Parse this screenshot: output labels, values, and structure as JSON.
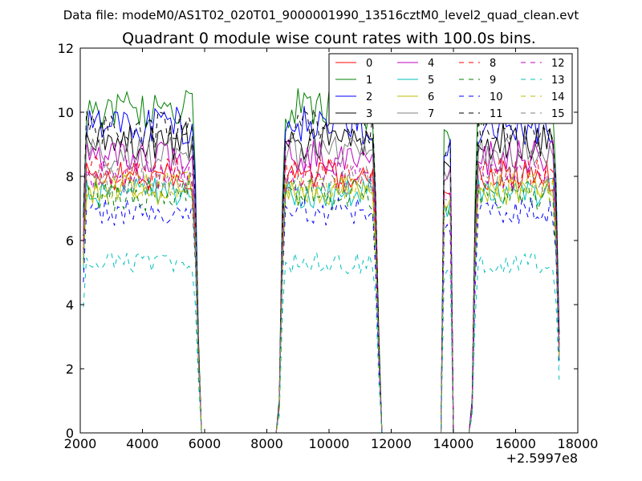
{
  "suptitle": "Data file: modeM0/AS1T02_020T01_9000001990_13516cztM0_level2_quad_clean.evt",
  "chart_data": {
    "type": "line",
    "title": "Quadrant 0 module wise count rates with 100.0s bins.",
    "xlabel": "",
    "ylabel": "",
    "x_offset_label": "+2.5997e8",
    "xlim": [
      2000,
      18000
    ],
    "ylim": [
      0,
      12
    ],
    "x_ticks": [
      2000,
      4000,
      6000,
      8000,
      10000,
      12000,
      14000,
      16000,
      18000
    ],
    "x_tick_labels": [
      "2000",
      "4000",
      "6000",
      "8000",
      "10000",
      "12000",
      "14000",
      "16000",
      "18000"
    ],
    "y_ticks": [
      0,
      2,
      4,
      6,
      8,
      10,
      12
    ],
    "y_tick_labels": [
      "0",
      "2",
      "4",
      "6",
      "8",
      "10",
      "12"
    ],
    "grid": false,
    "legend_position": "top-right",
    "legend_columns": 4,
    "segments": [
      {
        "start": 2000,
        "end": 5800
      },
      {
        "start": 8400,
        "end": 11600
      },
      {
        "start": 13700,
        "end": 13900
      },
      {
        "start": 14600,
        "end": 17400
      }
    ],
    "series": [
      {
        "name": "0",
        "color": "#ff0000",
        "dash": "solid",
        "level": 8.0
      },
      {
        "name": "1",
        "color": "#008000",
        "dash": "solid",
        "level": 10.1
      },
      {
        "name": "2",
        "color": "#0000ff",
        "dash": "solid",
        "level": 9.6
      },
      {
        "name": "3",
        "color": "#000000",
        "dash": "solid",
        "level": 9.1
      },
      {
        "name": "4",
        "color": "#bf00bf",
        "dash": "solid",
        "level": 8.6
      },
      {
        "name": "5",
        "color": "#00bfbf",
        "dash": "solid",
        "level": 7.5
      },
      {
        "name": "6",
        "color": "#bfbf00",
        "dash": "solid",
        "level": 7.6
      },
      {
        "name": "7",
        "color": "#808080",
        "dash": "solid",
        "level": 8.7
      },
      {
        "name": "8",
        "color": "#ff0000",
        "dash": "dashed",
        "level": 8.1
      },
      {
        "name": "9",
        "color": "#008000",
        "dash": "dashed",
        "level": 7.4
      },
      {
        "name": "10",
        "color": "#0000ff",
        "dash": "dashed",
        "level": 6.9
      },
      {
        "name": "11",
        "color": "#000000",
        "dash": "dashed",
        "level": 9.5
      },
      {
        "name": "12",
        "color": "#bf00bf",
        "dash": "dashed",
        "level": 8.0
      },
      {
        "name": "13",
        "color": "#00bfbf",
        "dash": "dashed",
        "level": 5.3
      },
      {
        "name": "14",
        "color": "#bfbf00",
        "dash": "dashed",
        "level": 7.7
      },
      {
        "name": "15",
        "color": "#808080",
        "dash": "dashed",
        "level": 7.9
      }
    ]
  }
}
